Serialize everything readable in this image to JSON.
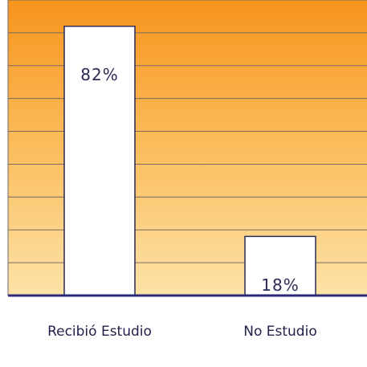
{
  "chart_data": {
    "type": "bar",
    "categories": [
      "Recibió Estudio",
      "No Estudio"
    ],
    "values": [
      82,
      18
    ],
    "value_labels": [
      "82%",
      "18%"
    ],
    "color": "#ffffff",
    "ylim": [
      0,
      90
    ],
    "yticks": [
      0,
      10,
      20,
      30,
      40,
      50,
      60,
      70,
      80,
      90
    ],
    "grid": true
  }
}
